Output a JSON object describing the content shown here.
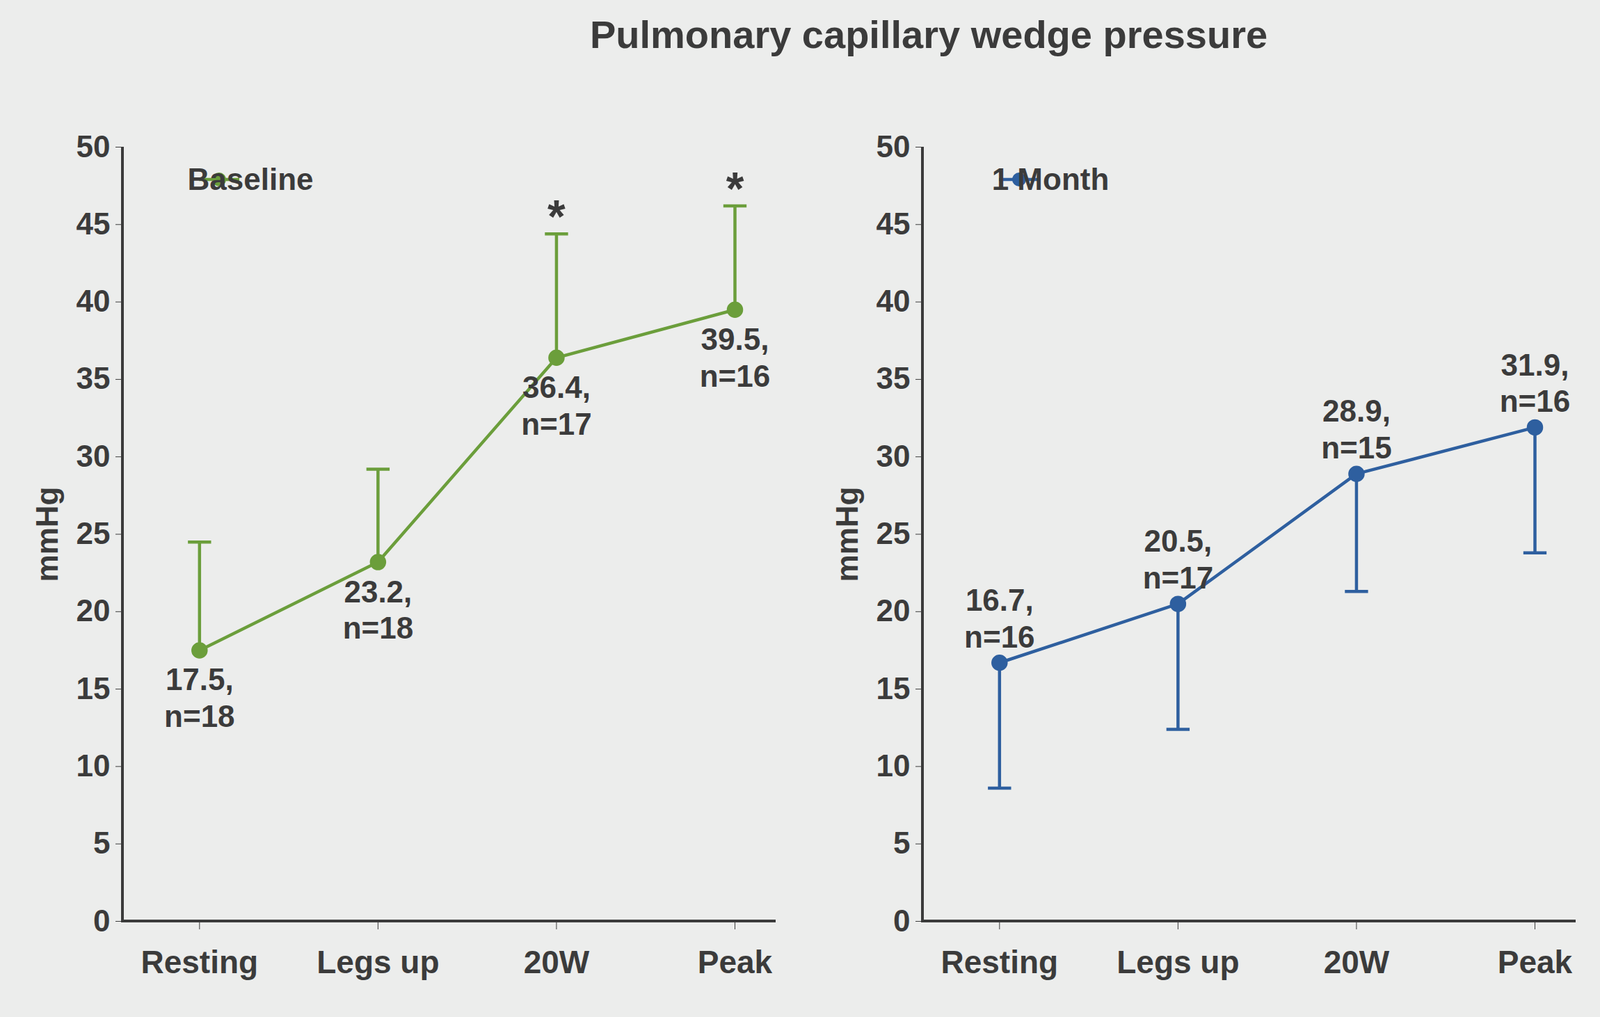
{
  "title": "Pulmonary capillary wedge pressure",
  "chart_data": [
    {
      "type": "line",
      "categories": [
        "Resting",
        "Legs up",
        "20W",
        "Peak"
      ],
      "y_label": "mmHg",
      "ylim": [
        0,
        50
      ],
      "yticks": [
        0,
        5,
        10,
        15,
        20,
        25,
        30,
        35,
        40,
        45,
        50
      ],
      "legend": "top-left",
      "data_labels": true,
      "series": [
        {
          "name": "Baseline",
          "color": "#6b9e3b",
          "marker": "circle",
          "values": [
            17.5,
            23.2,
            36.4,
            39.5
          ],
          "value_labels": [
            "17.5,\nn=18",
            "23.2,\nn=18",
            "36.4,\nn=17",
            "39.5,\nn=16"
          ],
          "error_upper": [
            7.0,
            6.0,
            8.0,
            6.7
          ]
        }
      ],
      "annotations": [
        {
          "category": "20W",
          "text": "*"
        },
        {
          "category": "Peak",
          "text": "*"
        }
      ]
    },
    {
      "type": "line",
      "categories": [
        "Resting",
        "Legs up",
        "20W",
        "Peak"
      ],
      "y_label": "mmHg",
      "ylim": [
        0,
        50
      ],
      "yticks": [
        0,
        5,
        10,
        15,
        20,
        25,
        30,
        35,
        40,
        45,
        50
      ],
      "legend": "top-left",
      "data_labels": true,
      "series": [
        {
          "name": "1 Month",
          "color": "#2e5f9f",
          "marker": "circle",
          "values": [
            16.7,
            20.5,
            28.9,
            31.9
          ],
          "value_labels": [
            "16.7,\nn=16",
            "20.5,\nn=17",
            "28.9,\nn=15",
            "31.9,\nn=16"
          ],
          "error_lower": [
            8.1,
            8.1,
            7.6,
            8.1
          ]
        }
      ]
    }
  ]
}
